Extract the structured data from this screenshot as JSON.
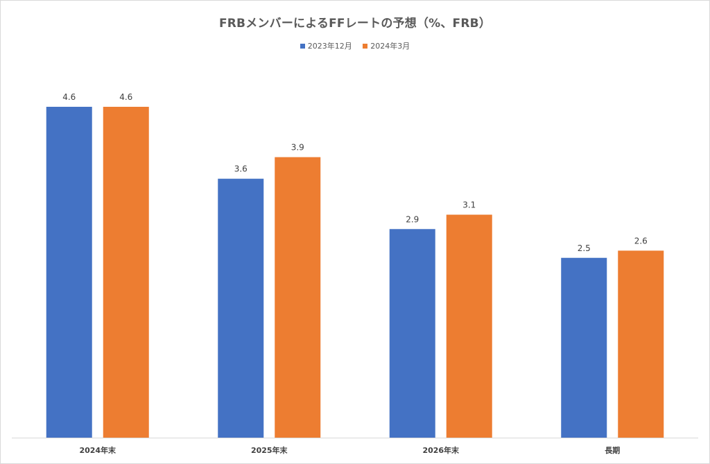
{
  "chart_data": {
    "type": "bar",
    "title": "FRBメンバーによるFFレートの予想（%、FRB）",
    "categories": [
      "2024年末",
      "2025年末",
      "2026年末",
      "長期"
    ],
    "series": [
      {
        "name": "2023年12月",
        "values": [
          4.6,
          3.6,
          2.9,
          2.5
        ],
        "color": "#4472C4"
      },
      {
        "name": "2024年3月",
        "values": [
          4.6,
          3.9,
          3.1,
          2.6
        ],
        "color": "#ED7D31"
      }
    ],
    "ylim": [
      0,
      5.2
    ],
    "grid": false,
    "legend_position": "top",
    "data_labels": true
  }
}
